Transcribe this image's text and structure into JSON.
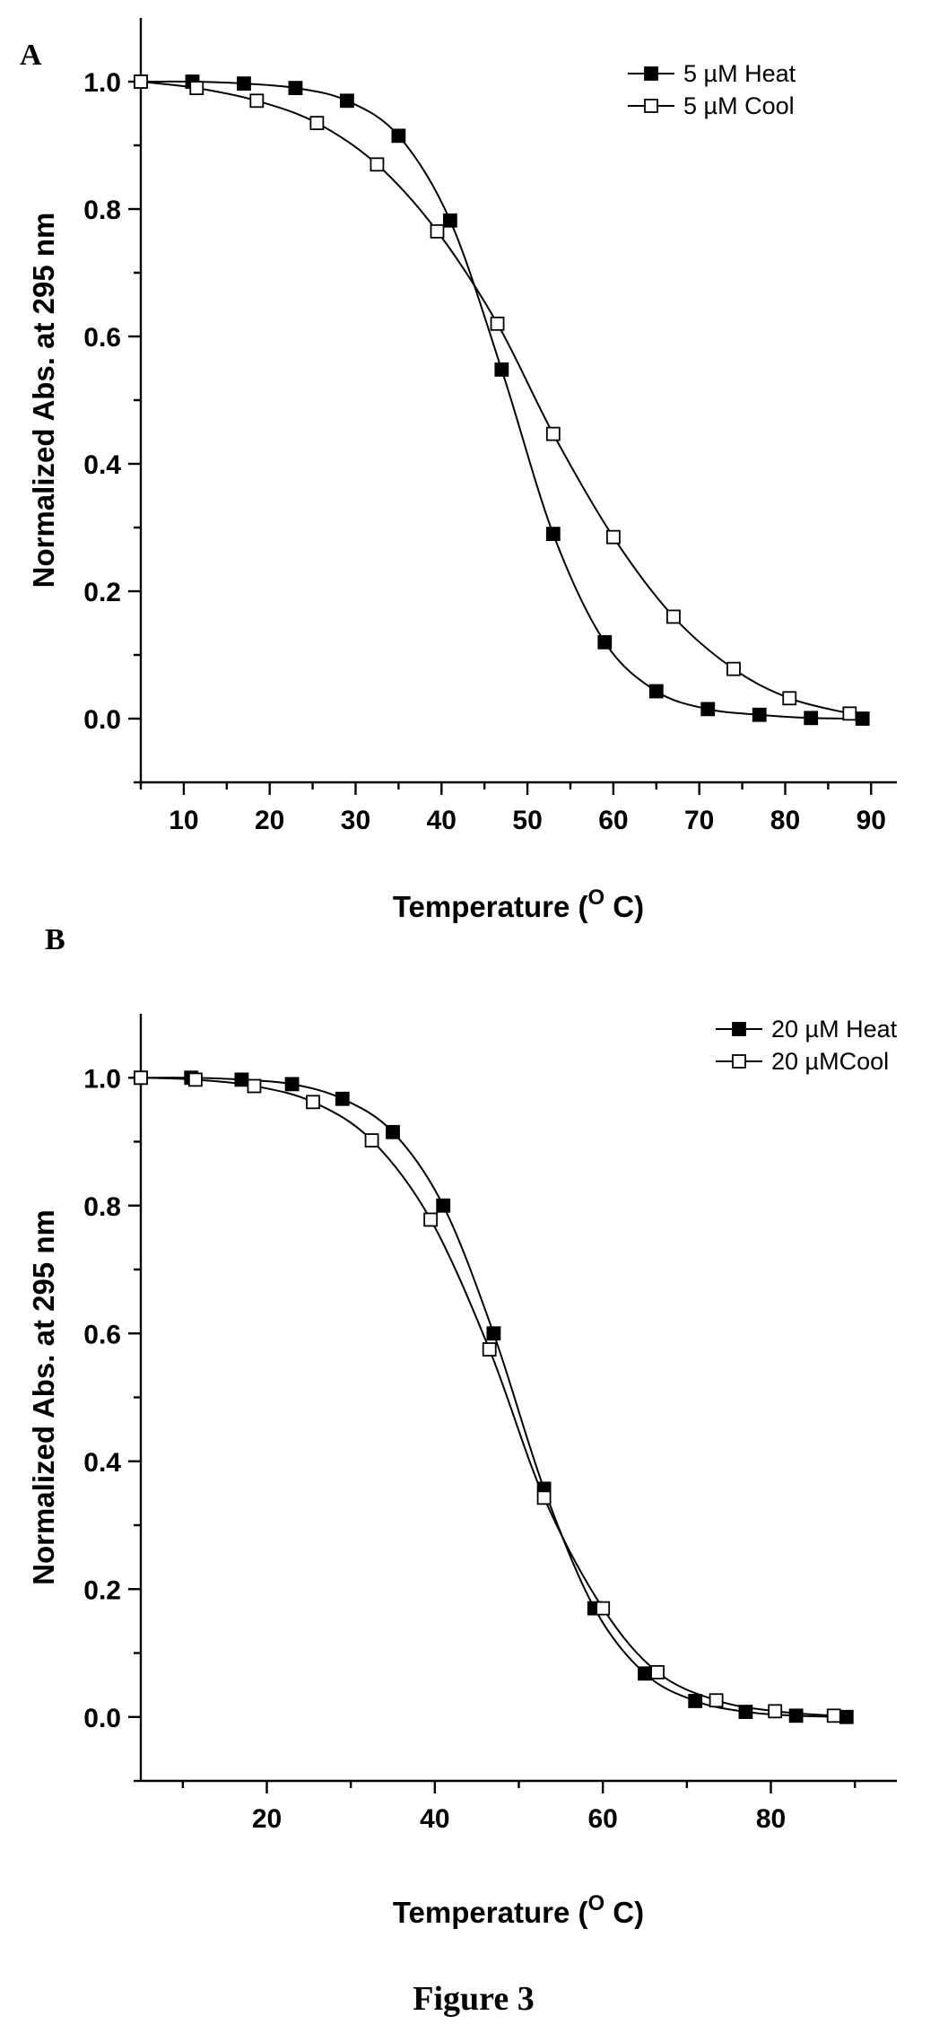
{
  "figure_caption": "Figure 3",
  "chart_data": [
    {
      "type": "line",
      "panel_label": "A",
      "xlabel": "Temperature (O C)",
      "xlabel_main": "Temperature (",
      "xlabel_sup": "O",
      "xlabel_end": " C)",
      "ylabel": "Normalized Abs. at 295 nm",
      "xlim": [
        5,
        93
      ],
      "ylim": [
        -0.1,
        1.1
      ],
      "x_ticks": [
        10,
        20,
        30,
        40,
        50,
        60,
        70,
        80,
        90
      ],
      "x_tick_labels": [
        "10",
        "20",
        "30",
        "40",
        "50",
        "60",
        "70",
        "80",
        "90"
      ],
      "x_minor_ticks": [
        5,
        15,
        25,
        35,
        45,
        55,
        65,
        75,
        85
      ],
      "y_ticks": [
        0.0,
        0.2,
        0.4,
        0.6,
        0.8,
        1.0
      ],
      "y_tick_labels": [
        "0.0",
        "0.2",
        "0.4",
        "0.6",
        "0.8",
        "1.0"
      ],
      "y_minor_ticks": [
        -0.1,
        0.1,
        0.3,
        0.5,
        0.7,
        0.9
      ],
      "legend_position": "top-right",
      "series": [
        {
          "name": "5 µM Heat",
          "marker": "filled-square",
          "x": [
            5,
            11,
            17,
            23,
            29,
            35,
            41,
            47,
            53,
            59,
            65,
            71,
            77,
            83,
            89
          ],
          "y": [
            1.0,
            1.0,
            0.997,
            0.99,
            0.97,
            0.915,
            0.782,
            0.548,
            0.29,
            0.12,
            0.043,
            0.015,
            0.006,
            0.001,
            0.0
          ]
        },
        {
          "name": "5 µM Cool",
          "marker": "open-square",
          "x": [
            5,
            11.5,
            18.5,
            25.5,
            32.5,
            39.5,
            46.5,
            53,
            60,
            67,
            74,
            80.5,
            87.5
          ],
          "y": [
            1.0,
            0.99,
            0.97,
            0.935,
            0.87,
            0.765,
            0.62,
            0.447,
            0.285,
            0.16,
            0.078,
            0.032,
            0.008
          ]
        }
      ]
    },
    {
      "type": "line",
      "panel_label": "B",
      "xlabel": "Temperature (O C)",
      "xlabel_main": "Temperature (",
      "xlabel_sup": "O",
      "xlabel_end": " C)",
      "ylabel": "Normalized Abs. at 295 nm",
      "xlim": [
        5,
        95
      ],
      "ylim": [
        -0.1,
        1.1
      ],
      "x_ticks": [
        20,
        40,
        60,
        80
      ],
      "x_tick_labels": [
        "20",
        "40",
        "60",
        "80"
      ],
      "x_minor_ticks": [
        10,
        30,
        50,
        70,
        90
      ],
      "y_ticks": [
        0.0,
        0.2,
        0.4,
        0.6,
        0.8,
        1.0
      ],
      "y_tick_labels": [
        "0.0",
        "0.2",
        "0.4",
        "0.6",
        "0.8",
        "1.0"
      ],
      "y_minor_ticks": [
        -0.1,
        0.1,
        0.3,
        0.5,
        0.7,
        0.9
      ],
      "legend_position": "top-right",
      "series": [
        {
          "name": "20 µM Heat",
          "marker": "filled-square",
          "x": [
            5,
            11,
            17,
            23,
            29,
            35,
            41,
            47,
            53,
            59,
            65,
            71,
            77,
            83,
            89
          ],
          "y": [
            1.0,
            1.0,
            0.997,
            0.99,
            0.967,
            0.915,
            0.8,
            0.6,
            0.357,
            0.17,
            0.068,
            0.025,
            0.008,
            0.002,
            0.0
          ]
        },
        {
          "name": "20 µMCool",
          "marker": "open-square",
          "x": [
            5,
            11.5,
            18.5,
            25.5,
            32.5,
            39.5,
            46.5,
            53,
            60,
            66.5,
            73.5,
            80.5,
            87.5
          ],
          "y": [
            1.0,
            0.997,
            0.987,
            0.962,
            0.902,
            0.778,
            0.575,
            0.343,
            0.17,
            0.07,
            0.026,
            0.009,
            0.002
          ]
        }
      ]
    }
  ]
}
